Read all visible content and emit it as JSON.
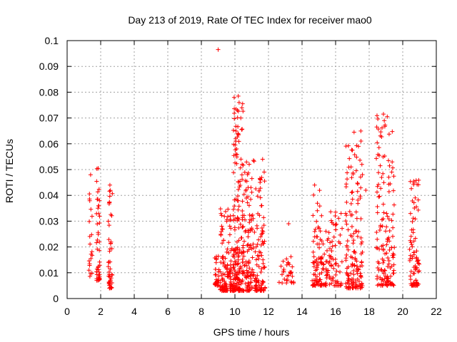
{
  "chart_data": {
    "type": "scatter",
    "title": "Day 213 of 2019, Rate Of TEC Index for receiver mao0",
    "xlabel": "GPS time / hours",
    "ylabel": "ROTI / TECUs",
    "xlim": [
      0,
      22
    ],
    "ylim": [
      0,
      0.1
    ],
    "xticks": [
      0,
      2,
      4,
      6,
      8,
      10,
      12,
      14,
      16,
      18,
      20,
      22
    ],
    "yticks": [
      0,
      0.01,
      0.02,
      0.03,
      0.04,
      0.05,
      0.06,
      0.07,
      0.08,
      0.09,
      0.1
    ],
    "xtick_labels": [
      "0",
      "2",
      "4",
      "6",
      "8",
      "10",
      "12",
      "14",
      "16",
      "18",
      "20",
      "22"
    ],
    "ytick_labels": [
      "0",
      "0.01",
      "0.02",
      "0.03",
      "0.04",
      "0.05",
      "0.06",
      "0.07",
      "0.08",
      "0.09",
      "0.1"
    ],
    "grid": true,
    "marker": "+",
    "color": "#ff0000",
    "clusters": [
      {
        "x_range": [
          1.3,
          1.5
        ],
        "y_range": [
          0.008,
          0.048
        ],
        "count": 20
      },
      {
        "x_range": [
          1.75,
          1.95
        ],
        "y_range": [
          0.007,
          0.051
        ],
        "count": 45
      },
      {
        "x_range": [
          2.45,
          2.7
        ],
        "y_range": [
          0.004,
          0.044
        ],
        "count": 45
      },
      {
        "x_range": [
          8.8,
          9.1
        ],
        "y_range": [
          0.005,
          0.017
        ],
        "count": 30
      },
      {
        "x_range": [
          9.1,
          9.9
        ],
        "y_range": [
          0.003,
          0.035
        ],
        "count": 120
      },
      {
        "x_range": [
          9.9,
          10.5
        ],
        "y_range": [
          0.003,
          0.078
        ],
        "count": 180
      },
      {
        "x_range": [
          10.5,
          11.8
        ],
        "y_range": [
          0.003,
          0.054
        ],
        "count": 200
      },
      {
        "x_range": [
          12.6,
          13.5
        ],
        "y_range": [
          0.006,
          0.018
        ],
        "count": 30
      },
      {
        "x_range": [
          14.6,
          15.2
        ],
        "y_range": [
          0.005,
          0.044
        ],
        "count": 80
      },
      {
        "x_range": [
          15.2,
          16.4
        ],
        "y_range": [
          0.005,
          0.034
        ],
        "count": 90
      },
      {
        "x_range": [
          16.6,
          17.6
        ],
        "y_range": [
          0.004,
          0.065
        ],
        "count": 150
      },
      {
        "x_range": [
          18.4,
          19.5
        ],
        "y_range": [
          0.005,
          0.071
        ],
        "count": 150
      },
      {
        "x_range": [
          20.4,
          21.0
        ],
        "y_range": [
          0.005,
          0.046
        ],
        "count": 80
      }
    ],
    "notable_points": [
      {
        "x": 9.0,
        "y": 0.0965
      },
      {
        "x": 10.2,
        "y": 0.0785
      },
      {
        "x": 10.25,
        "y": 0.076
      },
      {
        "x": 10.35,
        "y": 0.07
      },
      {
        "x": 10.4,
        "y": 0.0655
      },
      {
        "x": 10.05,
        "y": 0.061
      },
      {
        "x": 10.1,
        "y": 0.058
      },
      {
        "x": 11.65,
        "y": 0.054
      },
      {
        "x": 13.2,
        "y": 0.029
      },
      {
        "x": 17.1,
        "y": 0.0645
      },
      {
        "x": 17.0,
        "y": 0.0575
      },
      {
        "x": 18.85,
        "y": 0.0715
      },
      {
        "x": 18.9,
        "y": 0.069
      },
      {
        "x": 18.6,
        "y": 0.0555
      },
      {
        "x": 19.15,
        "y": 0.0535
      },
      {
        "x": 20.8,
        "y": 0.0458
      },
      {
        "x": 1.4,
        "y": 0.048
      },
      {
        "x": 1.85,
        "y": 0.0505
      },
      {
        "x": 2.55,
        "y": 0.044
      },
      {
        "x": 14.75,
        "y": 0.044
      },
      {
        "x": 16.0,
        "y": 0.0335
      },
      {
        "x": 17.8,
        "y": 0.042
      }
    ]
  }
}
